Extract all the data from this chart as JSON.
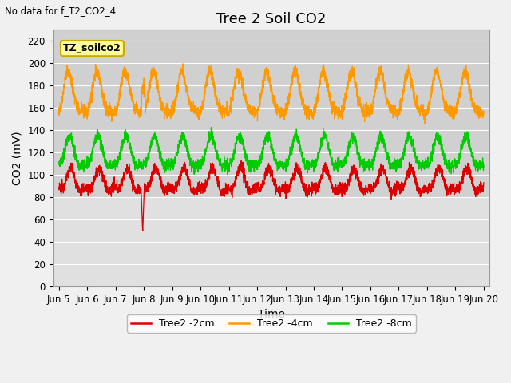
{
  "title": "Tree 2 Soil CO2",
  "subtitle": "No data for f_T2_CO2_4",
  "xlabel": "Time",
  "ylabel": "CO2 (mV)",
  "ylim": [
    0,
    230
  ],
  "yticks": [
    0,
    20,
    40,
    60,
    80,
    100,
    120,
    140,
    160,
    180,
    200,
    220
  ],
  "xlim_days": [
    4.8,
    20.2
  ],
  "xtick_labels": [
    "Jun 5",
    "Jun 6",
    "Jun 7",
    "Jun 8",
    "Jun 9",
    "Jun 10",
    "Jun 11",
    "Jun 12",
    "Jun 13",
    "Jun 14",
    "Jun 15",
    "Jun 16",
    "Jun 17",
    "Jun 18",
    "Jun 19",
    "Jun 20"
  ],
  "xtick_positions": [
    5,
    6,
    7,
    8,
    9,
    10,
    11,
    12,
    13,
    14,
    15,
    16,
    17,
    18,
    19,
    20
  ],
  "legend_labels": [
    "Tree2 -2cm",
    "Tree2 -4cm",
    "Tree2 -8cm"
  ],
  "legend_colors": [
    "#dd0000",
    "#ff9900",
    "#00cc00"
  ],
  "line_colors": [
    "#dd0000",
    "#ff9900",
    "#00cc00"
  ],
  "box_label": "TZ_soilco2",
  "box_bg": "#ffff99",
  "box_border": "#ccaa00",
  "fig_bg": "#f0f0f0",
  "plot_bg": "#e0e0e0",
  "active_bg": "#d0d0d0",
  "active_ymin": 80,
  "active_ymax": 230,
  "grid_color": "#ffffff",
  "title_fontsize": 13,
  "axis_label_fontsize": 10,
  "tick_fontsize": 8.5
}
